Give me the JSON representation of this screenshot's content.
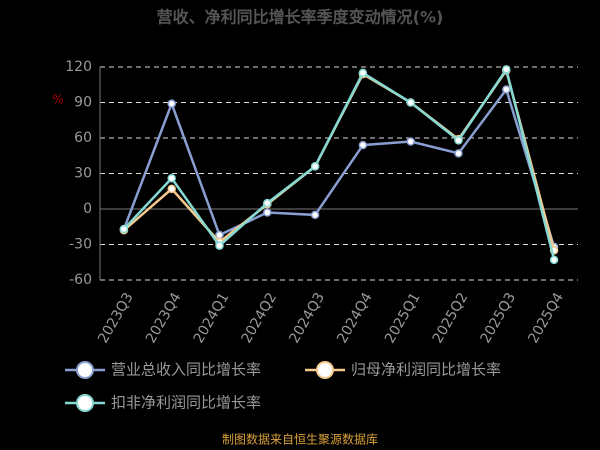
{
  "chart_data": {
    "type": "line",
    "title": "营收、净利同比增长率季度变动情况(%)",
    "y_label": "%",
    "categories": [
      "2023Q3",
      "2023Q4",
      "2024Q1",
      "2024Q2",
      "2024Q3",
      "2024Q4",
      "2025Q1",
      "2025Q2",
      "2025Q3",
      "2025Q4"
    ],
    "series": [
      {
        "name": "营业总收入同比增长率",
        "color": "#8a9fd1",
        "values": [
          -17,
          89,
          -22,
          -3,
          -5,
          54,
          57,
          47,
          101,
          -32
        ]
      },
      {
        "name": "归母净利润同比增长率",
        "color": "#f5c98e",
        "values": [
          -18,
          17,
          -28,
          4,
          36,
          114,
          90,
          59,
          117,
          -35
        ]
      },
      {
        "name": "扣非净利润同比增长率",
        "color": "#86d8d2",
        "values": [
          -17,
          26,
          -31,
          5,
          36,
          115,
          90,
          58,
          118,
          -43
        ]
      }
    ],
    "ylim": [
      -60,
      120
    ],
    "yticks": [
      -60,
      -30,
      0,
      30,
      60,
      90,
      120
    ],
    "grid": true,
    "legend": "bottom",
    "source": "制图数据来自恒生聚源数据库"
  }
}
